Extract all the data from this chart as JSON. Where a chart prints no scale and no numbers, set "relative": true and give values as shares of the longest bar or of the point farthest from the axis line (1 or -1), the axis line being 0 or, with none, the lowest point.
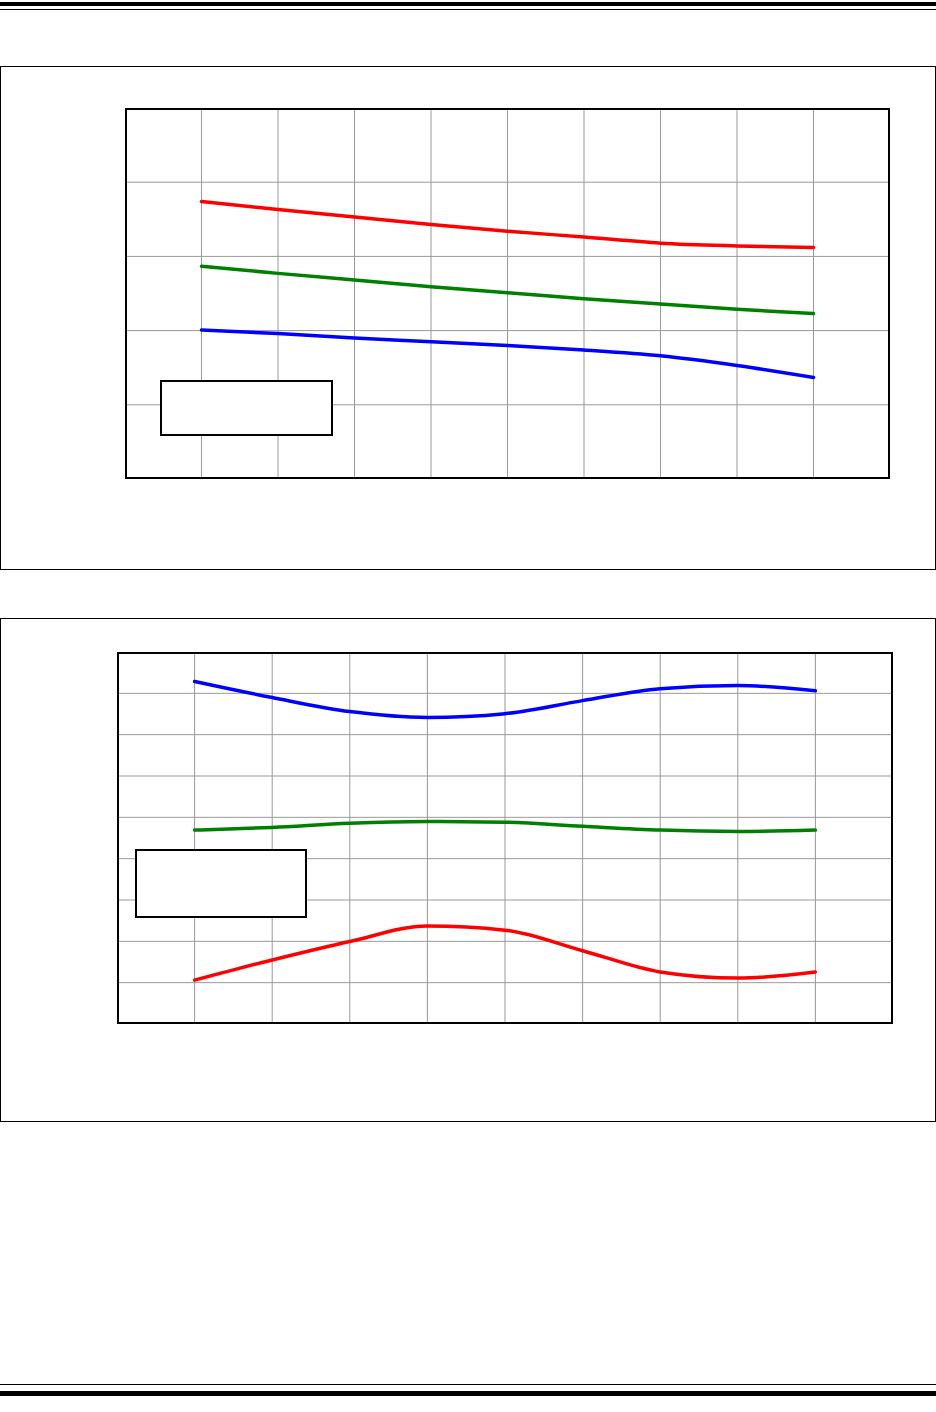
{
  "chart_data": [
    {
      "type": "line",
      "relative": true,
      "grid": true,
      "legend": false,
      "marker": "none",
      "line_style": "solid",
      "categories": [
        null,
        null,
        null,
        null,
        null,
        null,
        null,
        null,
        null
      ],
      "series": [
        {
          "color": "#ff0000",
          "values": [
            1,
            0.971,
            0.944,
            0.917,
            0.893,
            0.872,
            0.85,
            0.84,
            0.834
          ]
        },
        {
          "color": "#008000",
          "values": [
            0.767,
            0.741,
            0.717,
            0.693,
            0.671,
            0.65,
            0.631,
            0.612,
            0.596
          ]
        },
        {
          "color": "#0000ff",
          "values": [
            0.537,
            0.524,
            0.508,
            0.495,
            0.481,
            0.465,
            0.444,
            0.409,
            0.366
          ]
        }
      ]
    },
    {
      "type": "line",
      "relative": true,
      "grid": true,
      "legend": false,
      "marker": "none",
      "line_style": "solid",
      "categories": [
        null,
        null,
        null,
        null,
        null,
        null,
        null,
        null,
        null
      ],
      "series": [
        {
          "color": "#0000ff",
          "values": [
            1,
            0.953,
            0.912,
            0.895,
            0.906,
            0.944,
            0.979,
            0.988,
            0.973
          ]
        },
        {
          "color": "#008000",
          "values": [
            0.566,
            0.574,
            0.586,
            0.591,
            0.589,
            0.577,
            0.566,
            0.562,
            0.566
          ]
        },
        {
          "color": "#ff0000",
          "values": [
            0.128,
            0.187,
            0.241,
            0.286,
            0.274,
            0.214,
            0.152,
            0.134,
            0.152
          ]
        }
      ]
    }
  ]
}
